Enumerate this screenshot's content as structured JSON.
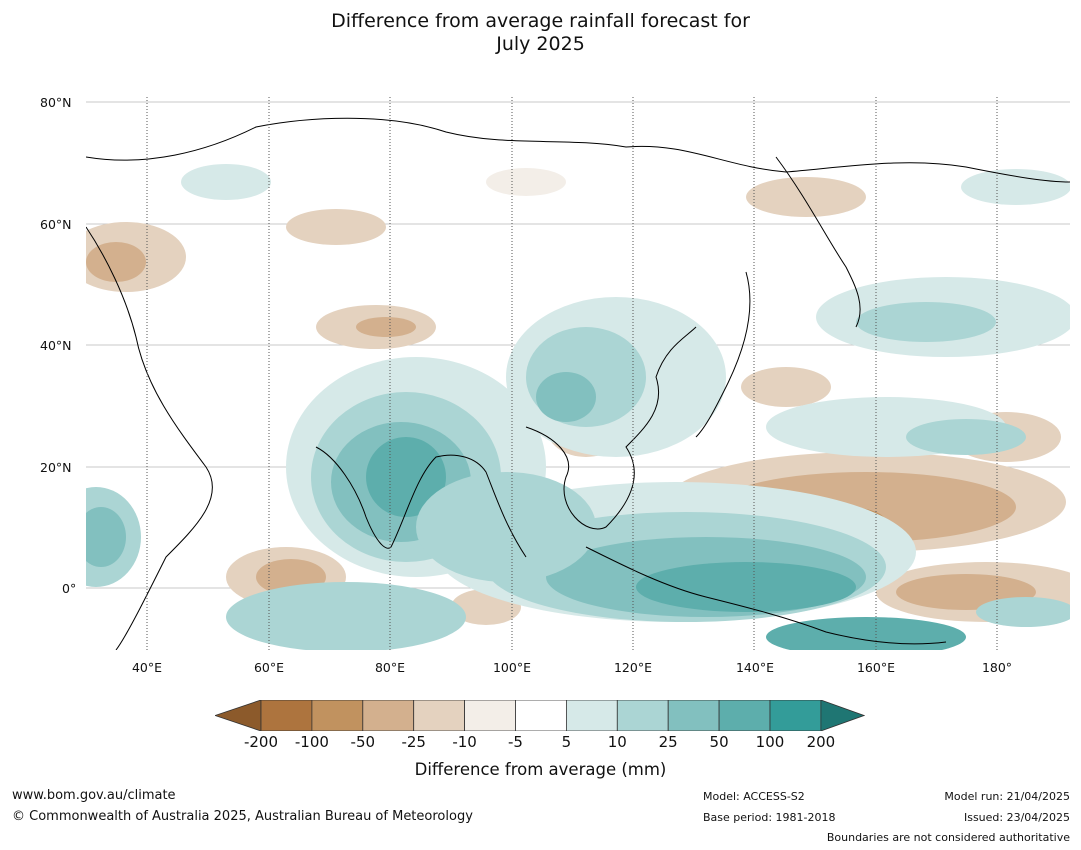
{
  "title_line1": "Difference from average rainfall forecast for",
  "title_line2": "July 2025",
  "lat_labels": [
    "80°N",
    "60°N",
    "40°N",
    "20°N",
    "0°"
  ],
  "lon_labels": [
    "40°E",
    "60°E",
    "80°E",
    "100°E",
    "120°E",
    "140°E",
    "160°E",
    "180°"
  ],
  "colorbar": {
    "ticks": [
      "-200",
      "-100",
      "-50",
      "-25",
      "-10",
      "-5",
      "5",
      "10",
      "25",
      "50",
      "100",
      "200"
    ],
    "colors": [
      "#8c5a2b",
      "#ad743e",
      "#c1925f",
      "#d3b08e",
      "#e4d2bf",
      "#f3eee8",
      "#ffffff",
      "#d6e9e8",
      "#abd5d4",
      "#82c0bf",
      "#5daeac",
      "#339c99",
      "#1f7673"
    ],
    "title": "Difference from average (mm)"
  },
  "footer": {
    "website": "www.bom.gov.au/climate",
    "copyright": "© Commonwealth of Australia 2025, Australian Bureau of Meteorology",
    "model": "Model: ACCESS-S2",
    "base_period": "Base period: 1981-2018",
    "model_run": "Model run: 21/04/2025",
    "issued": "Issued: 23/04/2025",
    "disclaimer": "Boundaries are not considered authoritative"
  }
}
